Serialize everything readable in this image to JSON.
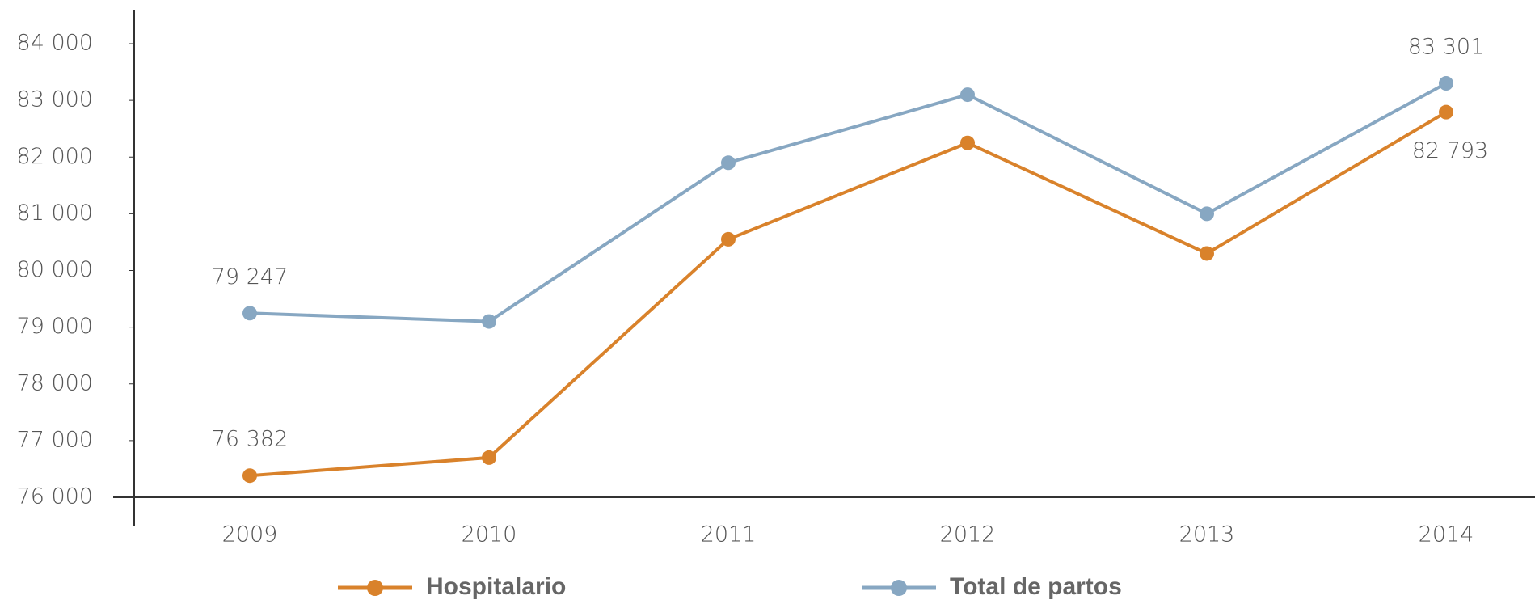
{
  "chart_data": {
    "type": "line",
    "categories": [
      "2009",
      "2010",
      "2011",
      "2012",
      "2013",
      "2014"
    ],
    "series": [
      {
        "name": "Hospitalario",
        "color": "#d9822b",
        "values": [
          76382,
          76700,
          80550,
          82250,
          80300,
          82793
        ],
        "value_labels": [
          "76 382",
          null,
          null,
          null,
          null,
          "82 793"
        ]
      },
      {
        "name": "Total de partos",
        "color": "#87a7c2",
        "values": [
          79247,
          79100,
          81900,
          83100,
          81000,
          83301
        ],
        "value_labels": [
          "79 247",
          null,
          null,
          null,
          null,
          "83 301"
        ]
      }
    ],
    "ylim": [
      76000,
      84000
    ],
    "yticks": [
      {
        "value": 76000,
        "label": "76 000"
      },
      {
        "value": 77000,
        "label": "77 000"
      },
      {
        "value": 78000,
        "label": "78 000"
      },
      {
        "value": 79000,
        "label": "79 000"
      },
      {
        "value": 80000,
        "label": "80 000"
      },
      {
        "value": 81000,
        "label": "81 000"
      },
      {
        "value": 82000,
        "label": "82 000"
      },
      {
        "value": 83000,
        "label": "83 000"
      },
      {
        "value": 84000,
        "label": "84 000"
      }
    ],
    "grid": false
  }
}
